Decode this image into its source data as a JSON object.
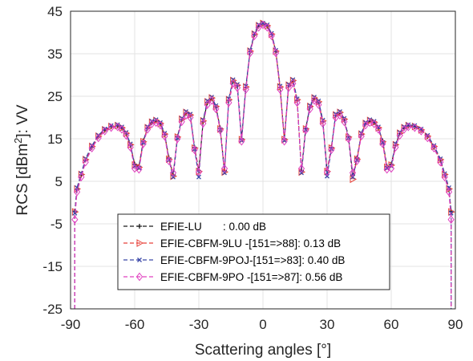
{
  "chart_data": {
    "type": "line",
    "xlabel": "Scattering angles [°]",
    "ylabel": "RCS [dBm",
    "ylabel_sup": "2",
    "ylabel_suffix": "]: VV",
    "xlim": [
      -90,
      90
    ],
    "ylim": [
      -25,
      45
    ],
    "xticks": [
      -90,
      -60,
      -30,
      0,
      30,
      60,
      90
    ],
    "yticks": [
      45,
      35,
      25,
      15,
      5,
      -5,
      -15,
      -25
    ],
    "grid": true,
    "legend_position": "lower-center",
    "x": [
      -88,
      -87,
      -85,
      -83,
      -80,
      -77,
      -74,
      -71,
      -68,
      -66,
      -64,
      -62,
      -60,
      -58,
      -56,
      -54,
      -52,
      -50,
      -48,
      -46,
      -44,
      -42,
      -40,
      -38,
      -36,
      -34,
      -32,
      -30,
      -28,
      -26,
      -24,
      -22,
      -20,
      -18,
      -16,
      -14,
      -12,
      -10,
      -8,
      -6,
      -4,
      -2,
      0,
      2,
      4,
      6,
      8,
      10,
      12,
      14,
      16,
      18,
      20,
      22,
      24,
      26,
      28,
      30,
      32,
      34,
      36,
      38,
      40,
      42,
      44,
      46,
      48,
      50,
      52,
      54,
      56,
      58,
      60,
      62,
      64,
      66,
      68,
      71,
      74,
      77,
      80,
      83,
      85,
      87,
      88
    ],
    "series": [
      {
        "name": "EFIE-LU       : 0.00 dB",
        "color": "#1a1a1a",
        "marker": "plus",
        "values": [
          -2,
          3,
          6.5,
          10,
          13,
          15.5,
          17,
          17.8,
          18,
          17.5,
          16.2,
          13.5,
          9,
          8.5,
          14.5,
          17.5,
          18.8,
          19.2,
          18.5,
          16,
          10.5,
          6.5,
          15.5,
          19.5,
          21,
          20.5,
          13,
          7.5,
          19,
          23.5,
          24.5,
          22.5,
          17.5,
          7.5,
          24,
          28.5,
          27.5,
          15,
          27,
          35.5,
          39.5,
          41.5,
          42,
          41.5,
          39.5,
          35.5,
          27,
          15,
          27.5,
          28.5,
          24,
          7.5,
          17.5,
          22.5,
          24.5,
          23.5,
          19,
          7.5,
          13,
          20.5,
          21,
          19.5,
          15.5,
          6.5,
          10.5,
          16,
          18.5,
          19.2,
          18.8,
          17.5,
          14.5,
          8.5,
          9,
          13.5,
          16.2,
          17.5,
          18,
          17.8,
          17,
          15.5,
          13,
          10,
          6.5,
          3,
          -2
        ]
      },
      {
        "name": "EFIE-CBFM-9LU -[151=>88]: 0.13 dB",
        "color": "#e8423a",
        "marker": "triangle",
        "values": [
          -2.2,
          3.2,
          6.6,
          10.1,
          13.2,
          15.6,
          17.1,
          17.9,
          18.1,
          17.6,
          16.3,
          13.6,
          8.8,
          8.3,
          14.3,
          17.6,
          18.9,
          19.3,
          18.6,
          16.1,
          10.2,
          6.2,
          15.4,
          19.6,
          21.2,
          20.6,
          12.8,
          7.3,
          19.2,
          23.7,
          24.6,
          22.6,
          17.3,
          7.2,
          24.2,
          28.7,
          27.6,
          14.8,
          27.2,
          35.6,
          39.6,
          41.6,
          42.1,
          41.6,
          39.6,
          35.6,
          27.2,
          14.8,
          27.6,
          28.7,
          24.2,
          7.2,
          17.3,
          22.6,
          24.6,
          23.7,
          19.2,
          7.3,
          12.8,
          20.6,
          21.2,
          19.6,
          15.4,
          5.5,
          10.2,
          16.1,
          18.6,
          19.3,
          18.9,
          17.6,
          14.3,
          8.3,
          8.8,
          13.6,
          16.3,
          17.6,
          18.1,
          17.9,
          17.1,
          15.6,
          13.2,
          10.1,
          6.6,
          3.2,
          -2.2
        ]
      },
      {
        "name": "EFIE-CBFM-9POJ-[151=>83]: 0.40 dB",
        "color": "#3a47a8",
        "marker": "x",
        "values": [
          -2.5,
          3.5,
          6.8,
          10.3,
          13.4,
          15.8,
          17.3,
          18.1,
          18.3,
          17.8,
          16.5,
          13.8,
          8.6,
          8.1,
          14.1,
          17.8,
          19.1,
          19.5,
          18.8,
          16.3,
          10,
          6,
          15.2,
          19.8,
          21.4,
          20.8,
          12.6,
          6,
          19.4,
          23.9,
          24.8,
          22.8,
          17.1,
          7,
          24.4,
          28.9,
          27.8,
          14.6,
          27.4,
          35.8,
          39.8,
          41.8,
          42.2,
          41.8,
          39.8,
          35.8,
          27.4,
          14.6,
          27.8,
          28.9,
          24.4,
          7,
          17.1,
          22.8,
          24.8,
          23.9,
          19.4,
          6.2,
          12.6,
          20.8,
          21.4,
          19.8,
          15.2,
          6,
          10,
          16.3,
          18.8,
          19.5,
          19.1,
          17.8,
          14.1,
          8.1,
          8.6,
          13.8,
          16.5,
          17.8,
          18.3,
          18.1,
          17.3,
          15.8,
          13.4,
          10.3,
          6.8,
          3.5,
          -2.5
        ]
      },
      {
        "name": "EFIE-CBFM-9PO -[151=>87]: 0.56 dB",
        "color": "#e040c0",
        "marker": "diamond",
        "values": [
          -4,
          2.5,
          6,
          9.5,
          12.8,
          15.2,
          16.8,
          17.6,
          17.8,
          17.2,
          15.8,
          13,
          8,
          7.8,
          13.8,
          17.2,
          18.5,
          18.8,
          18.2,
          15.6,
          9.8,
          7,
          15,
          19,
          20.5,
          20,
          12.4,
          7.2,
          18.6,
          23,
          24,
          22,
          17,
          8,
          23.5,
          28,
          27,
          14.4,
          26.6,
          35.2,
          39.2,
          41.2,
          41.8,
          41.2,
          39.2,
          35.2,
          26.6,
          14.4,
          27,
          28,
          23.5,
          8,
          17,
          22,
          24,
          23,
          18.6,
          7.2,
          12.4,
          20,
          20.5,
          19,
          15,
          7,
          9.8,
          15.6,
          18.2,
          18.8,
          18.5,
          17.2,
          13.8,
          7.8,
          8,
          13,
          15.8,
          17.2,
          17.8,
          17.6,
          16.8,
          15.2,
          12.8,
          9.5,
          6,
          2.5,
          -4
        ]
      }
    ]
  }
}
